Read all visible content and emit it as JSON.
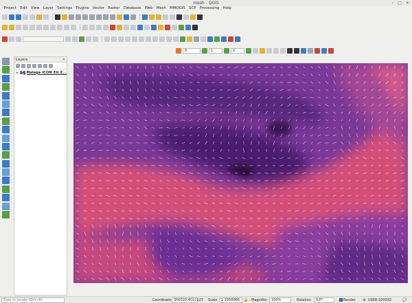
{
  "window": {
    "title": "mesh - QGIS"
  },
  "menu": [
    "Project",
    "Edit",
    "View",
    "Layer",
    "Settings",
    "Plugins",
    "Vector",
    "Raster",
    "Database",
    "Web",
    "Mesh",
    "MMQGIS",
    "SCP",
    "Processing",
    "Help"
  ],
  "toolbar": {
    "spin_1": "0",
    "spin_2": "1",
    "spin_3": "2"
  },
  "layers_panel": {
    "title": "Layers",
    "close_glyph": "✕",
    "layer_name": "Malaga_ICON_EU_E...",
    "expand_glyph": "▸"
  },
  "status": {
    "locate_placeholder": "Type to locate (Ctrl+K)",
    "coordinate_label": "Coordinate",
    "coordinate_value": "356320,4011127",
    "scale_label": "Scale",
    "scale_value": "1:1958966",
    "magnifier_label": "Magnifier",
    "magnifier_value": "100%",
    "rotation_label": "Rotation",
    "rotation_value": "0.0°",
    "render_label": "Render",
    "crs_label": "USER:100032"
  },
  "colors": {
    "mesh_low": "#2a0f3a",
    "mesh_mid": "#6d2c9c",
    "mesh_high": "#e0527a",
    "arrow": "#ffffff"
  }
}
